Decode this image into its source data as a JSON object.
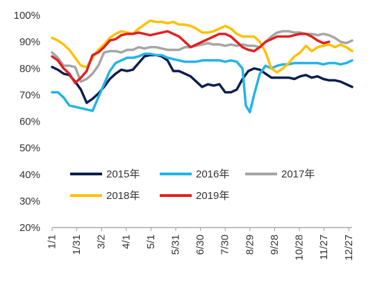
{
  "chart_data": {
    "type": "line",
    "title": "",
    "xlabel": "",
    "ylabel": "",
    "ylim": [
      20,
      100
    ],
    "yticks": [
      20,
      30,
      40,
      50,
      60,
      70,
      80,
      90,
      100
    ],
    "ytick_labels": [
      "20%",
      "30%",
      "40%",
      "50%",
      "60%",
      "70%",
      "80%",
      "90%",
      "100%"
    ],
    "xticks": [
      "1/1",
      "1/31",
      "3/2",
      "4/1",
      "5/1",
      "5/31",
      "6/30",
      "7/30",
      "8/29",
      "9/28",
      "10/28",
      "11/27",
      "12/27"
    ],
    "grid": false,
    "legend_position": "lower-middle",
    "x_note": "x values are the calendar dates shown as ticks; points are approximately weekly",
    "series": [
      {
        "name": "2015年",
        "color": "#0D1F4E",
        "dates": [
          "1/1",
          "1/8",
          "1/15",
          "1/22",
          "1/29",
          "2/5",
          "2/12",
          "2/19",
          "2/26",
          "3/5",
          "3/12",
          "3/19",
          "3/26",
          "4/2",
          "4/9",
          "4/16",
          "4/23",
          "4/30",
          "5/7",
          "5/14",
          "5/21",
          "5/28",
          "6/4",
          "6/11",
          "6/18",
          "6/25",
          "7/2",
          "7/9",
          "7/16",
          "7/23",
          "7/30",
          "8/6",
          "8/13",
          "8/20",
          "8/27",
          "9/3",
          "9/10",
          "9/17",
          "9/24",
          "10/1",
          "10/8",
          "10/15",
          "10/22",
          "10/29",
          "11/5",
          "11/12",
          "11/19",
          "11/26",
          "12/3",
          "12/10",
          "12/17",
          "12/24",
          "12/31"
        ],
        "values": [
          80.5,
          79.5,
          78,
          77.5,
          75,
          72,
          67,
          68.5,
          70.5,
          73,
          76,
          78,
          79.5,
          79,
          79.5,
          82,
          84.5,
          85,
          85,
          84.5,
          83,
          79,
          79,
          78,
          77,
          75,
          73,
          74,
          73.5,
          74,
          71,
          71,
          72,
          76,
          79,
          80,
          79.5,
          78,
          76.5,
          76.5,
          76.5,
          76.5,
          76,
          77,
          77.5,
          76.5,
          77,
          76,
          75.5,
          75.5,
          75,
          74,
          73
        ]
      },
      {
        "name": "2016年",
        "color": "#22B4E8",
        "dates": [
          "1/1",
          "1/8",
          "1/15",
          "1/22",
          "1/29",
          "2/5",
          "2/12",
          "2/19",
          "2/26",
          "3/5",
          "3/12",
          "3/19",
          "3/26",
          "4/2",
          "4/9",
          "4/16",
          "4/23",
          "4/30",
          "5/7",
          "5/14",
          "5/21",
          "5/28",
          "6/4",
          "6/11",
          "6/18",
          "6/25",
          "7/2",
          "7/9",
          "7/16",
          "7/23",
          "7/30",
          "8/6",
          "8/13",
          "8/20",
          "8/24",
          "8/29",
          "9/3",
          "9/10",
          "9/17",
          "9/24",
          "10/1",
          "10/8",
          "10/15",
          "10/22",
          "10/29",
          "11/5",
          "11/12",
          "11/19",
          "11/26",
          "12/3",
          "12/10",
          "12/17",
          "12/24",
          "12/31"
        ],
        "values": [
          71,
          71,
          69,
          66,
          65.5,
          65,
          64.5,
          64,
          69,
          74,
          79,
          82,
          83,
          84,
          84,
          84.5,
          85.5,
          85.5,
          85,
          85,
          84,
          83.5,
          83,
          82.5,
          82.5,
          82.5,
          83,
          83,
          83,
          83,
          82.5,
          83,
          82.5,
          80,
          66,
          63.5,
          70,
          78,
          81,
          80,
          81,
          81.5,
          81.5,
          82,
          82,
          82,
          82,
          82,
          81.5,
          82,
          82,
          81.5,
          82,
          83
        ]
      },
      {
        "name": "2017年",
        "color": "#A5A5A5",
        "dates": [
          "1/1",
          "1/8",
          "1/15",
          "1/22",
          "1/29",
          "2/5",
          "2/12",
          "2/19",
          "2/26",
          "3/5",
          "3/12",
          "3/19",
          "3/26",
          "4/2",
          "4/9",
          "4/16",
          "4/23",
          "4/30",
          "5/7",
          "5/14",
          "5/21",
          "5/28",
          "6/4",
          "6/11",
          "6/18",
          "6/25",
          "7/2",
          "7/9",
          "7/16",
          "7/23",
          "7/30",
          "8/6",
          "8/13",
          "8/20",
          "8/27",
          "9/3",
          "9/10",
          "9/17",
          "9/24",
          "10/1",
          "10/8",
          "10/15",
          "10/22",
          "10/29",
          "11/5",
          "11/12",
          "11/19",
          "11/26",
          "12/3",
          "12/10",
          "12/17",
          "12/24",
          "12/31"
        ],
        "values": [
          86,
          84,
          81,
          81,
          80.5,
          75,
          76,
          78,
          81,
          86,
          86.5,
          86.5,
          86,
          87,
          87,
          88,
          87.5,
          88,
          88,
          87.5,
          87,
          87,
          87,
          88,
          88,
          88.5,
          89,
          89.5,
          89,
          89,
          88.5,
          89,
          88.5,
          89,
          88.5,
          88.5,
          88,
          90,
          92,
          93.5,
          94,
          94,
          93.5,
          93.5,
          93,
          93,
          92.5,
          93,
          92.5,
          91.5,
          90,
          89.5,
          90.5
        ]
      },
      {
        "name": "2018年",
        "color": "#FFC000",
        "dates": [
          "1/1",
          "1/8",
          "1/15",
          "1/22",
          "1/29",
          "2/5",
          "2/12",
          "2/19",
          "2/26",
          "3/5",
          "3/12",
          "3/19",
          "3/26",
          "4/2",
          "4/9",
          "4/16",
          "4/23",
          "4/30",
          "5/7",
          "5/14",
          "5/21",
          "5/28",
          "6/4",
          "6/11",
          "6/18",
          "6/25",
          "7/2",
          "7/9",
          "7/16",
          "7/23",
          "7/30",
          "8/6",
          "8/13",
          "8/20",
          "8/27",
          "9/3",
          "9/10",
          "9/17",
          "9/24",
          "10/1",
          "10/8",
          "10/15",
          "10/22",
          "10/29",
          "11/5",
          "11/12",
          "11/19",
          "11/26",
          "12/3",
          "12/10",
          "12/17",
          "12/24",
          "12/31"
        ],
        "values": [
          91.5,
          90.5,
          89,
          87,
          84,
          81,
          80.5,
          84,
          87,
          89,
          91.5,
          93,
          94,
          93.5,
          93,
          95,
          96.5,
          98,
          97.5,
          97.5,
          97,
          97.5,
          96.5,
          96.5,
          96,
          95,
          93.5,
          93.5,
          94,
          95,
          96,
          95,
          93,
          92,
          92,
          92,
          90,
          86,
          80,
          78.5,
          80,
          82,
          84.5,
          86,
          88.5,
          86.5,
          88,
          88.5,
          89,
          88,
          89,
          88,
          86.5
        ]
      },
      {
        "name": "2019年",
        "color": "#E31F1F",
        "dates": [
          "1/1",
          "1/8",
          "1/15",
          "1/22",
          "1/29",
          "2/5",
          "2/12",
          "2/19",
          "2/26",
          "3/5",
          "3/12",
          "3/19",
          "3/26",
          "4/2",
          "4/9",
          "4/16",
          "4/23",
          "4/30",
          "5/7",
          "5/14",
          "5/21",
          "5/28",
          "6/4",
          "6/11",
          "6/18",
          "6/25",
          "7/2",
          "7/9",
          "7/16",
          "7/23",
          "7/30",
          "8/6",
          "8/13",
          "8/20",
          "8/27",
          "9/3",
          "9/10",
          "9/17",
          "9/24",
          "10/1",
          "10/8",
          "10/15",
          "10/22",
          "10/29",
          "11/5",
          "11/12",
          "11/19",
          "11/26",
          "12/3"
        ],
        "values": [
          84.5,
          83,
          80,
          78,
          74.5,
          76.5,
          79,
          85,
          86,
          88,
          90.5,
          91,
          92.5,
          93,
          93,
          93.5,
          93,
          92.5,
          93,
          93.5,
          94,
          93,
          92,
          90,
          88,
          89,
          90,
          91,
          92,
          93,
          93,
          92,
          90,
          88,
          87,
          86.5,
          88,
          90,
          91,
          92,
          92,
          92,
          92.5,
          93,
          93,
          92,
          90.5,
          89.5,
          90
        ]
      }
    ]
  }
}
